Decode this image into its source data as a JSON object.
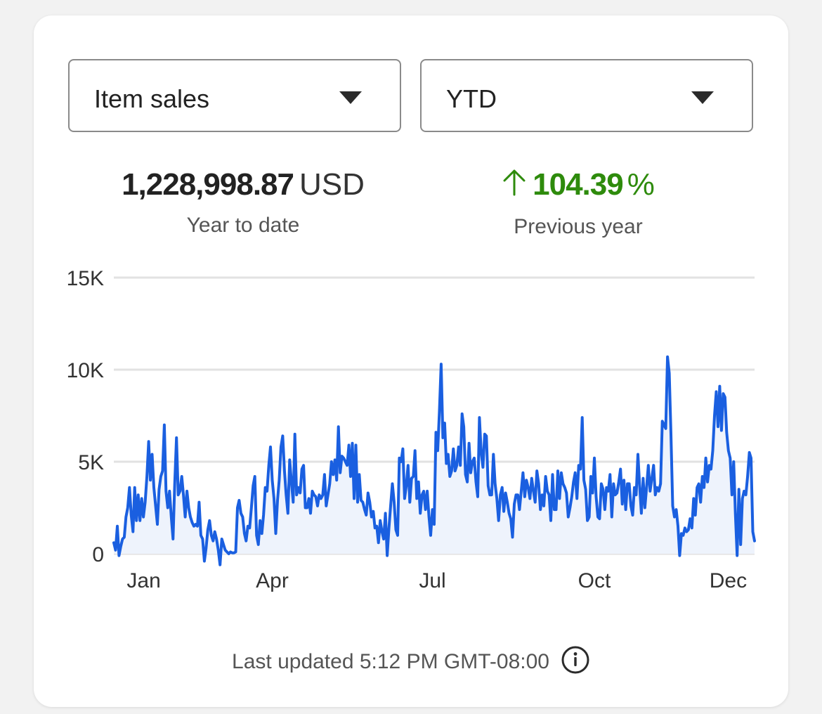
{
  "dropdowns": {
    "metric": {
      "label": "Item sales"
    },
    "range": {
      "label": "YTD"
    }
  },
  "summary": {
    "total": {
      "value": "1,228,998.87",
      "unit": "USD",
      "label": "Year to date"
    },
    "change": {
      "direction": "up",
      "value": "104.39",
      "unit": "%",
      "label": "Previous year"
    }
  },
  "colors": {
    "line": "#1a5fe0",
    "fill": "#eef3fc",
    "positive": "#2e8b0c",
    "grid": "#e2e2e2"
  },
  "chart_data": {
    "type": "line",
    "title": "",
    "xlabel": "",
    "ylabel": "",
    "ylim": [
      0,
      15000
    ],
    "yticks": [
      0,
      5000,
      10000,
      15000
    ],
    "ytick_labels": [
      "0",
      "5K",
      "10K",
      "15K"
    ],
    "xlim": [
      1,
      365
    ],
    "xticks": [
      {
        "day": 18,
        "label": "Jan"
      },
      {
        "day": 91,
        "label": "Apr"
      },
      {
        "day": 182,
        "label": "Jul"
      },
      {
        "day": 274,
        "label": "Oct"
      },
      {
        "day": 350,
        "label": "Dec"
      }
    ],
    "grid": true,
    "series": [
      {
        "name": "Item sales",
        "values": [
          600,
          200,
          1500,
          -100,
          400,
          800,
          900,
          2000,
          2500,
          3600,
          2100,
          1200,
          3600,
          1800,
          3200,
          1800,
          3000,
          2000,
          2800,
          4200,
          6100,
          4000,
          5400,
          3600,
          2600,
          1600,
          3500,
          4200,
          4500,
          7000,
          3400,
          2500,
          3400,
          2000,
          800,
          3800,
          6300,
          3200,
          3400,
          4200,
          3200,
          2000,
          3400,
          2500,
          2000,
          1700,
          1500,
          1600,
          1500,
          2800,
          1000,
          800,
          -400,
          300,
          1300,
          1800,
          1000,
          700,
          1200,
          800,
          200,
          -600,
          800,
          500,
          200,
          100,
          0,
          100,
          50,
          50,
          100,
          2500,
          2900,
          2200,
          2000,
          1100,
          700,
          1500,
          1400,
          2500,
          3700,
          4200,
          1000,
          500,
          1800,
          1100,
          2100,
          3600,
          3400,
          4800,
          5800,
          4000,
          3000,
          1100,
          2900,
          4000,
          5800,
          6400,
          4500,
          3200,
          2200,
          5100,
          3900,
          2800,
          6500,
          3200,
          3600,
          3300,
          4600,
          4800,
          2500,
          2500,
          3000,
          2200,
          3400,
          3200,
          3100,
          2600,
          3200,
          3000,
          3200,
          4300,
          2600,
          3200,
          3800,
          5000,
          4300,
          5100,
          4000,
          6900,
          4400,
          5300,
          5200,
          5000,
          4800,
          5900,
          4200,
          6000,
          3000,
          5900,
          2800,
          4300,
          2900,
          2800,
          2400,
          2100,
          3300,
          2800,
          2000,
          2300,
          1400,
          1500,
          600,
          1800,
          1200,
          800,
          2200,
          -100,
          1400,
          2600,
          3800,
          2800,
          1300,
          1000,
          5200,
          5000,
          5700,
          3000,
          3700,
          4800,
          2800,
          4100,
          4200,
          5600,
          3000,
          3900,
          2200,
          3200,
          3400,
          2400,
          3400,
          2000,
          1000,
          2400,
          1600,
          6600,
          5600,
          7700,
          10300,
          6300,
          7100,
          4900,
          5400,
          4200,
          4500,
          5700,
          4500,
          4800,
          5800,
          4800,
          7600,
          6900,
          4300,
          3900,
          6000,
          4400,
          5000,
          5200,
          3900,
          3100,
          7400,
          5500,
          4700,
          6500,
          6400,
          3700,
          3200,
          3200,
          5400,
          3800,
          3000,
          1800,
          3200,
          3600,
          2300,
          3300,
          2800,
          2200,
          1900,
          900,
          2700,
          3200,
          3200,
          2400,
          3400,
          4400,
          3100,
          4000,
          3600,
          3000,
          4100,
          3400,
          2800,
          4500,
          3800,
          2400,
          3200,
          2600,
          4200,
          3400,
          3200,
          1800,
          4300,
          2400,
          2400,
          4500,
          3000,
          4400,
          3800,
          3600,
          3300,
          2000,
          2500,
          3100,
          3900,
          4400,
          3000,
          4800,
          4600,
          7400,
          4000,
          3500,
          1800,
          2000,
          4200,
          3300,
          5200,
          3100,
          2000,
          1900,
          3800,
          3500,
          2400,
          3600,
          3400,
          4300,
          2000,
          3800,
          3200,
          3300,
          3900,
          4600,
          2700,
          4000,
          2400,
          3800,
          3800,
          2600,
          2100,
          3600,
          3200,
          5400,
          3700,
          2200,
          4100,
          2500,
          3600,
          4800,
          3400,
          4100,
          4800,
          3200,
          3600,
          3400,
          3800,
          7200,
          7000,
          6800,
          10700,
          9800,
          6500,
          2600,
          2000,
          2400,
          1500,
          -100,
          1100,
          1000,
          1400,
          1200,
          1300,
          1900,
          1400,
          3000,
          2100,
          3600,
          3800,
          2800,
          4200,
          3600,
          5200,
          3900,
          4800,
          4600,
          5600,
          7500,
          8800,
          6900,
          9100,
          6700,
          8700,
          8500,
          6600,
          5600,
          5200,
          3200,
          5000,
          2200,
          -100,
          3500,
          500,
          3000,
          3400,
          3200,
          4200,
          5500,
          5200,
          1200,
          700
        ]
      }
    ]
  },
  "footer": {
    "last_updated": "Last updated 5:12 PM GMT-08:00"
  }
}
